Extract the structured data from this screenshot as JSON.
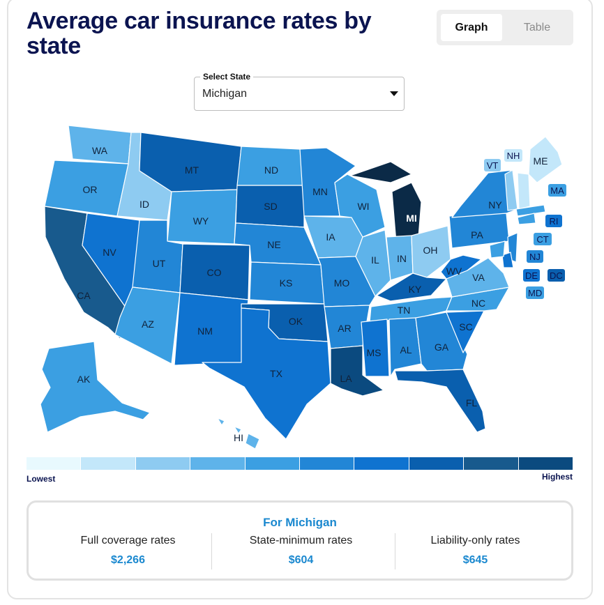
{
  "title": "Average car insurance rates by state",
  "toggle": {
    "graph_label": "Graph",
    "table_label": "Table",
    "selected": "Graph"
  },
  "select": {
    "legend": "Select State",
    "value": "Michigan"
  },
  "legend": {
    "low_label": "Lowest",
    "high_label": "Highest",
    "colors": [
      "#e8f9fe",
      "#c3e7fa",
      "#8ecbf1",
      "#5eb3ea",
      "#3b9fe2",
      "#2286d6",
      "#0f73d0",
      "#0a5fae",
      "#185a8d",
      "#0b4a7f"
    ]
  },
  "colors": {
    "title": "#0b1450",
    "accent": "#1a88cf",
    "michigan": "#0b2a47"
  },
  "info": {
    "title": "For Michigan",
    "full_label": "Full coverage rates",
    "full_value": "$2,266",
    "min_label": "State-minimum rates",
    "min_value": "$604",
    "liab_label": "Liability-only rates",
    "liab_value": "$645"
  },
  "states": [
    {
      "abbr": "WA",
      "color": "#5eb3ea"
    },
    {
      "abbr": "OR",
      "color": "#3b9fe2"
    },
    {
      "abbr": "CA",
      "color": "#185a8d"
    },
    {
      "abbr": "NV",
      "color": "#0f73d0"
    },
    {
      "abbr": "ID",
      "color": "#8ecbf1"
    },
    {
      "abbr": "MT",
      "color": "#0a5fae"
    },
    {
      "abbr": "WY",
      "color": "#3b9fe2"
    },
    {
      "abbr": "UT",
      "color": "#2286d6"
    },
    {
      "abbr": "AZ",
      "color": "#3b9fe2"
    },
    {
      "abbr": "CO",
      "color": "#0a5fae"
    },
    {
      "abbr": "NM",
      "color": "#0f73d0"
    },
    {
      "abbr": "ND",
      "color": "#3b9fe2"
    },
    {
      "abbr": "SD",
      "color": "#0a5fae"
    },
    {
      "abbr": "NE",
      "color": "#2286d6"
    },
    {
      "abbr": "KS",
      "color": "#2286d6"
    },
    {
      "abbr": "OK",
      "color": "#0a5fae"
    },
    {
      "abbr": "TX",
      "color": "#0f73d0"
    },
    {
      "abbr": "MN",
      "color": "#2286d6"
    },
    {
      "abbr": "IA",
      "color": "#5eb3ea"
    },
    {
      "abbr": "MO",
      "color": "#2286d6"
    },
    {
      "abbr": "AR",
      "color": "#2286d6"
    },
    {
      "abbr": "LA",
      "color": "#0b4a7f"
    },
    {
      "abbr": "WI",
      "color": "#3b9fe2"
    },
    {
      "abbr": "IL",
      "color": "#5eb3ea"
    },
    {
      "abbr": "MI",
      "color": "#0b2a47"
    },
    {
      "abbr": "IN",
      "color": "#5eb3ea"
    },
    {
      "abbr": "OH",
      "color": "#8ecbf1"
    },
    {
      "abbr": "KY",
      "color": "#0a5fae"
    },
    {
      "abbr": "TN",
      "color": "#3b9fe2"
    },
    {
      "abbr": "MS",
      "color": "#0f73d0"
    },
    {
      "abbr": "AL",
      "color": "#2286d6"
    },
    {
      "abbr": "GA",
      "color": "#2286d6"
    },
    {
      "abbr": "FL",
      "color": "#0a5fae"
    },
    {
      "abbr": "SC",
      "color": "#0f73d0"
    },
    {
      "abbr": "NC",
      "color": "#3b9fe2"
    },
    {
      "abbr": "VA",
      "color": "#5eb3ea"
    },
    {
      "abbr": "WV",
      "color": "#0f73d0"
    },
    {
      "abbr": "PA",
      "color": "#2286d6"
    },
    {
      "abbr": "NY",
      "color": "#2286d6"
    },
    {
      "abbr": "ME",
      "color": "#c3e7fa"
    },
    {
      "abbr": "AK",
      "color": "#3b9fe2"
    },
    {
      "abbr": "HI",
      "color": "#5eb3ea"
    }
  ],
  "small_states": [
    {
      "abbr": "VT",
      "color": "#8ecbf1"
    },
    {
      "abbr": "NH",
      "color": "#c3e7fa"
    },
    {
      "abbr": "MA",
      "color": "#3b9fe2"
    },
    {
      "abbr": "RI",
      "color": "#0f73d0"
    },
    {
      "abbr": "CT",
      "color": "#3b9fe2"
    },
    {
      "abbr": "NJ",
      "color": "#2286d6"
    },
    {
      "abbr": "DE",
      "color": "#0f73d0"
    },
    {
      "abbr": "DC",
      "color": "#0a5fae"
    },
    {
      "abbr": "MD",
      "color": "#3b9fe2"
    }
  ]
}
